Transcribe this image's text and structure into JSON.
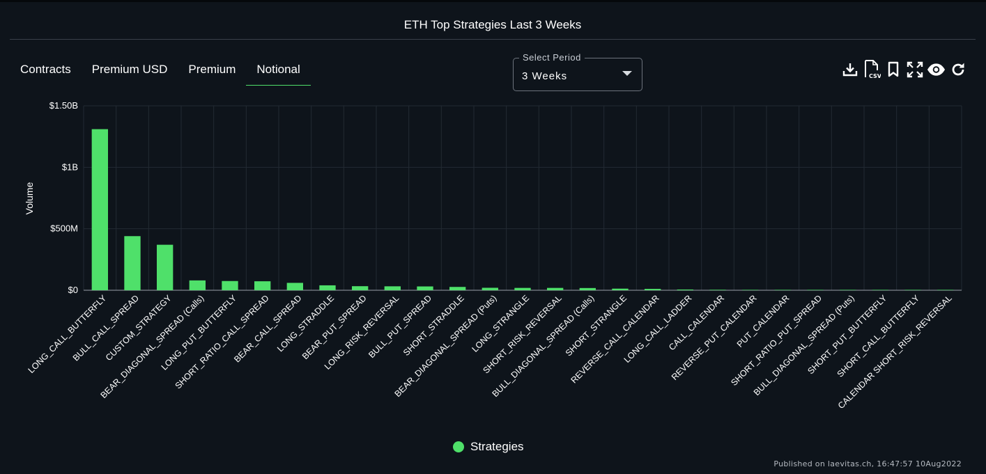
{
  "header": {
    "title": "ETH Top Strategies Last 3 Weeks"
  },
  "tabs": [
    {
      "label": "Contracts",
      "active": false
    },
    {
      "label": "Premium USD",
      "active": false
    },
    {
      "label": "Premium",
      "active": false
    },
    {
      "label": "Notional",
      "active": true
    }
  ],
  "period_select": {
    "label": "Select Period",
    "value": "3 Weeks"
  },
  "toolbar": {
    "icons": [
      "download-icon",
      "csv-icon",
      "bookmark-icon",
      "fullscreen-icon",
      "eye-icon",
      "refresh-icon"
    ],
    "csv_text": "CSV"
  },
  "colors": {
    "bar": "#4fe06a",
    "background": "#0e141b",
    "grid": "#232a33"
  },
  "chart_data": {
    "type": "bar",
    "title": "ETH Top Strategies Last 3 Weeks",
    "xlabel": "",
    "ylabel": "Volume",
    "ylim": [
      0,
      1500000000
    ],
    "yticks": [
      0,
      500000000,
      1000000000,
      1500000000
    ],
    "ytick_labels": [
      "$0",
      "$500M",
      "$1B",
      "$1.50B"
    ],
    "grid": true,
    "legend_position": "bottom-center",
    "categories": [
      "LONG_CALL_BUTTERFLY",
      "BULL_CALL_SPREAD",
      "CUSTOM_STRATEGY",
      "BEAR_DIAGONAL_SPREAD (Calls)",
      "LONG_PUT_BUTTERFLY",
      "SHORT_RATIO_CALL_SPREAD",
      "BEAR_CALL_SPREAD",
      "LONG_STRADDLE",
      "BEAR_PUT_SPREAD",
      "LONG_RISK_REVERSAL",
      "BULL_PUT_SPREAD",
      "SHORT_STRADDLE",
      "BEAR_DIAGONAL_SPREAD (Puts)",
      "LONG_STRANGLE",
      "SHORT_RISK_REVERSAL",
      "BULL_DIAGONAL_SPREAD (Calls)",
      "SHORT_STRANGLE",
      "REVERSE_CALL_CALENDAR",
      "LONG_CALL_LADDER",
      "CALL_CALENDAR",
      "REVERSE_PUT_CALENDAR",
      "PUT_CALENDAR",
      "SHORT_RATIO_PUT_SPREAD",
      "BULL_DIAGONAL_SPREAD (Puts)",
      "SHORT_PUT_BUTTERFLY",
      "SHORT_CALL_BUTTERFLY",
      "CALENDAR SHORT_RISK_REVERSAL"
    ],
    "series": [
      {
        "name": "Strategies",
        "values": [
          1310000000,
          440000000,
          370000000,
          80000000,
          75000000,
          73000000,
          60000000,
          40000000,
          33000000,
          32000000,
          31000000,
          27000000,
          20000000,
          19000000,
          19000000,
          18000000,
          13000000,
          11000000,
          6000000,
          4000000,
          1000000,
          1000000,
          800000,
          600000,
          400000,
          300000,
          200000
        ]
      }
    ]
  },
  "footer": {
    "published": "Published on laevitas.ch, 16:47:57 10Aug2022"
  }
}
